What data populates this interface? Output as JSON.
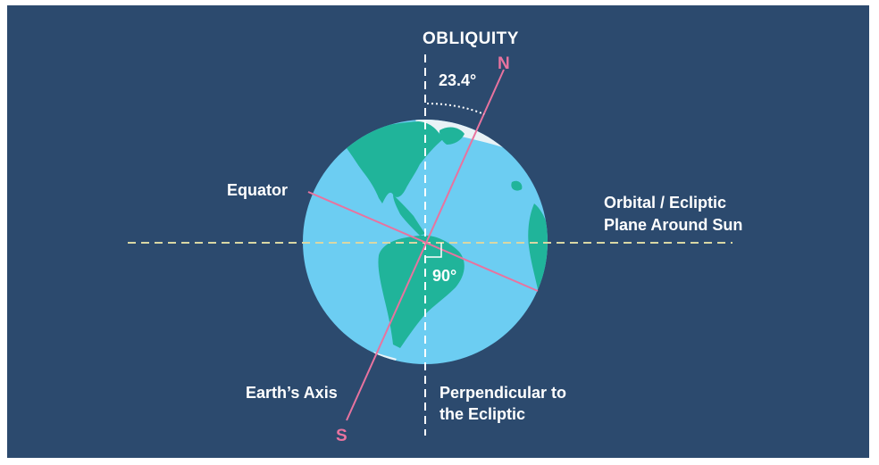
{
  "diagram": {
    "title": "OBLIQUITY",
    "tilt_angle_label": "23.4°",
    "right_angle_label": "90°",
    "north_label": "N",
    "south_label": "S",
    "equator_label": "Equator",
    "axis_label": "Earth’s Axis",
    "orbital_plane_label_line1": "Orbital / Ecliptic",
    "orbital_plane_label_line2": "Plane Around Sun",
    "perpendicular_label_line1": "Perpendicular to",
    "perpendicular_label_line2": "the Ecliptic",
    "tilt_degrees": 23.4
  },
  "colors": {
    "background": "#2c4a6e",
    "ocean": "#6ccdf2",
    "land": "#20b49a",
    "ice": "#e9f2f6",
    "axis_line": "#e8739f",
    "ecliptic_line": "#d9d7a4",
    "perpendicular_line": "#ffffff"
  }
}
